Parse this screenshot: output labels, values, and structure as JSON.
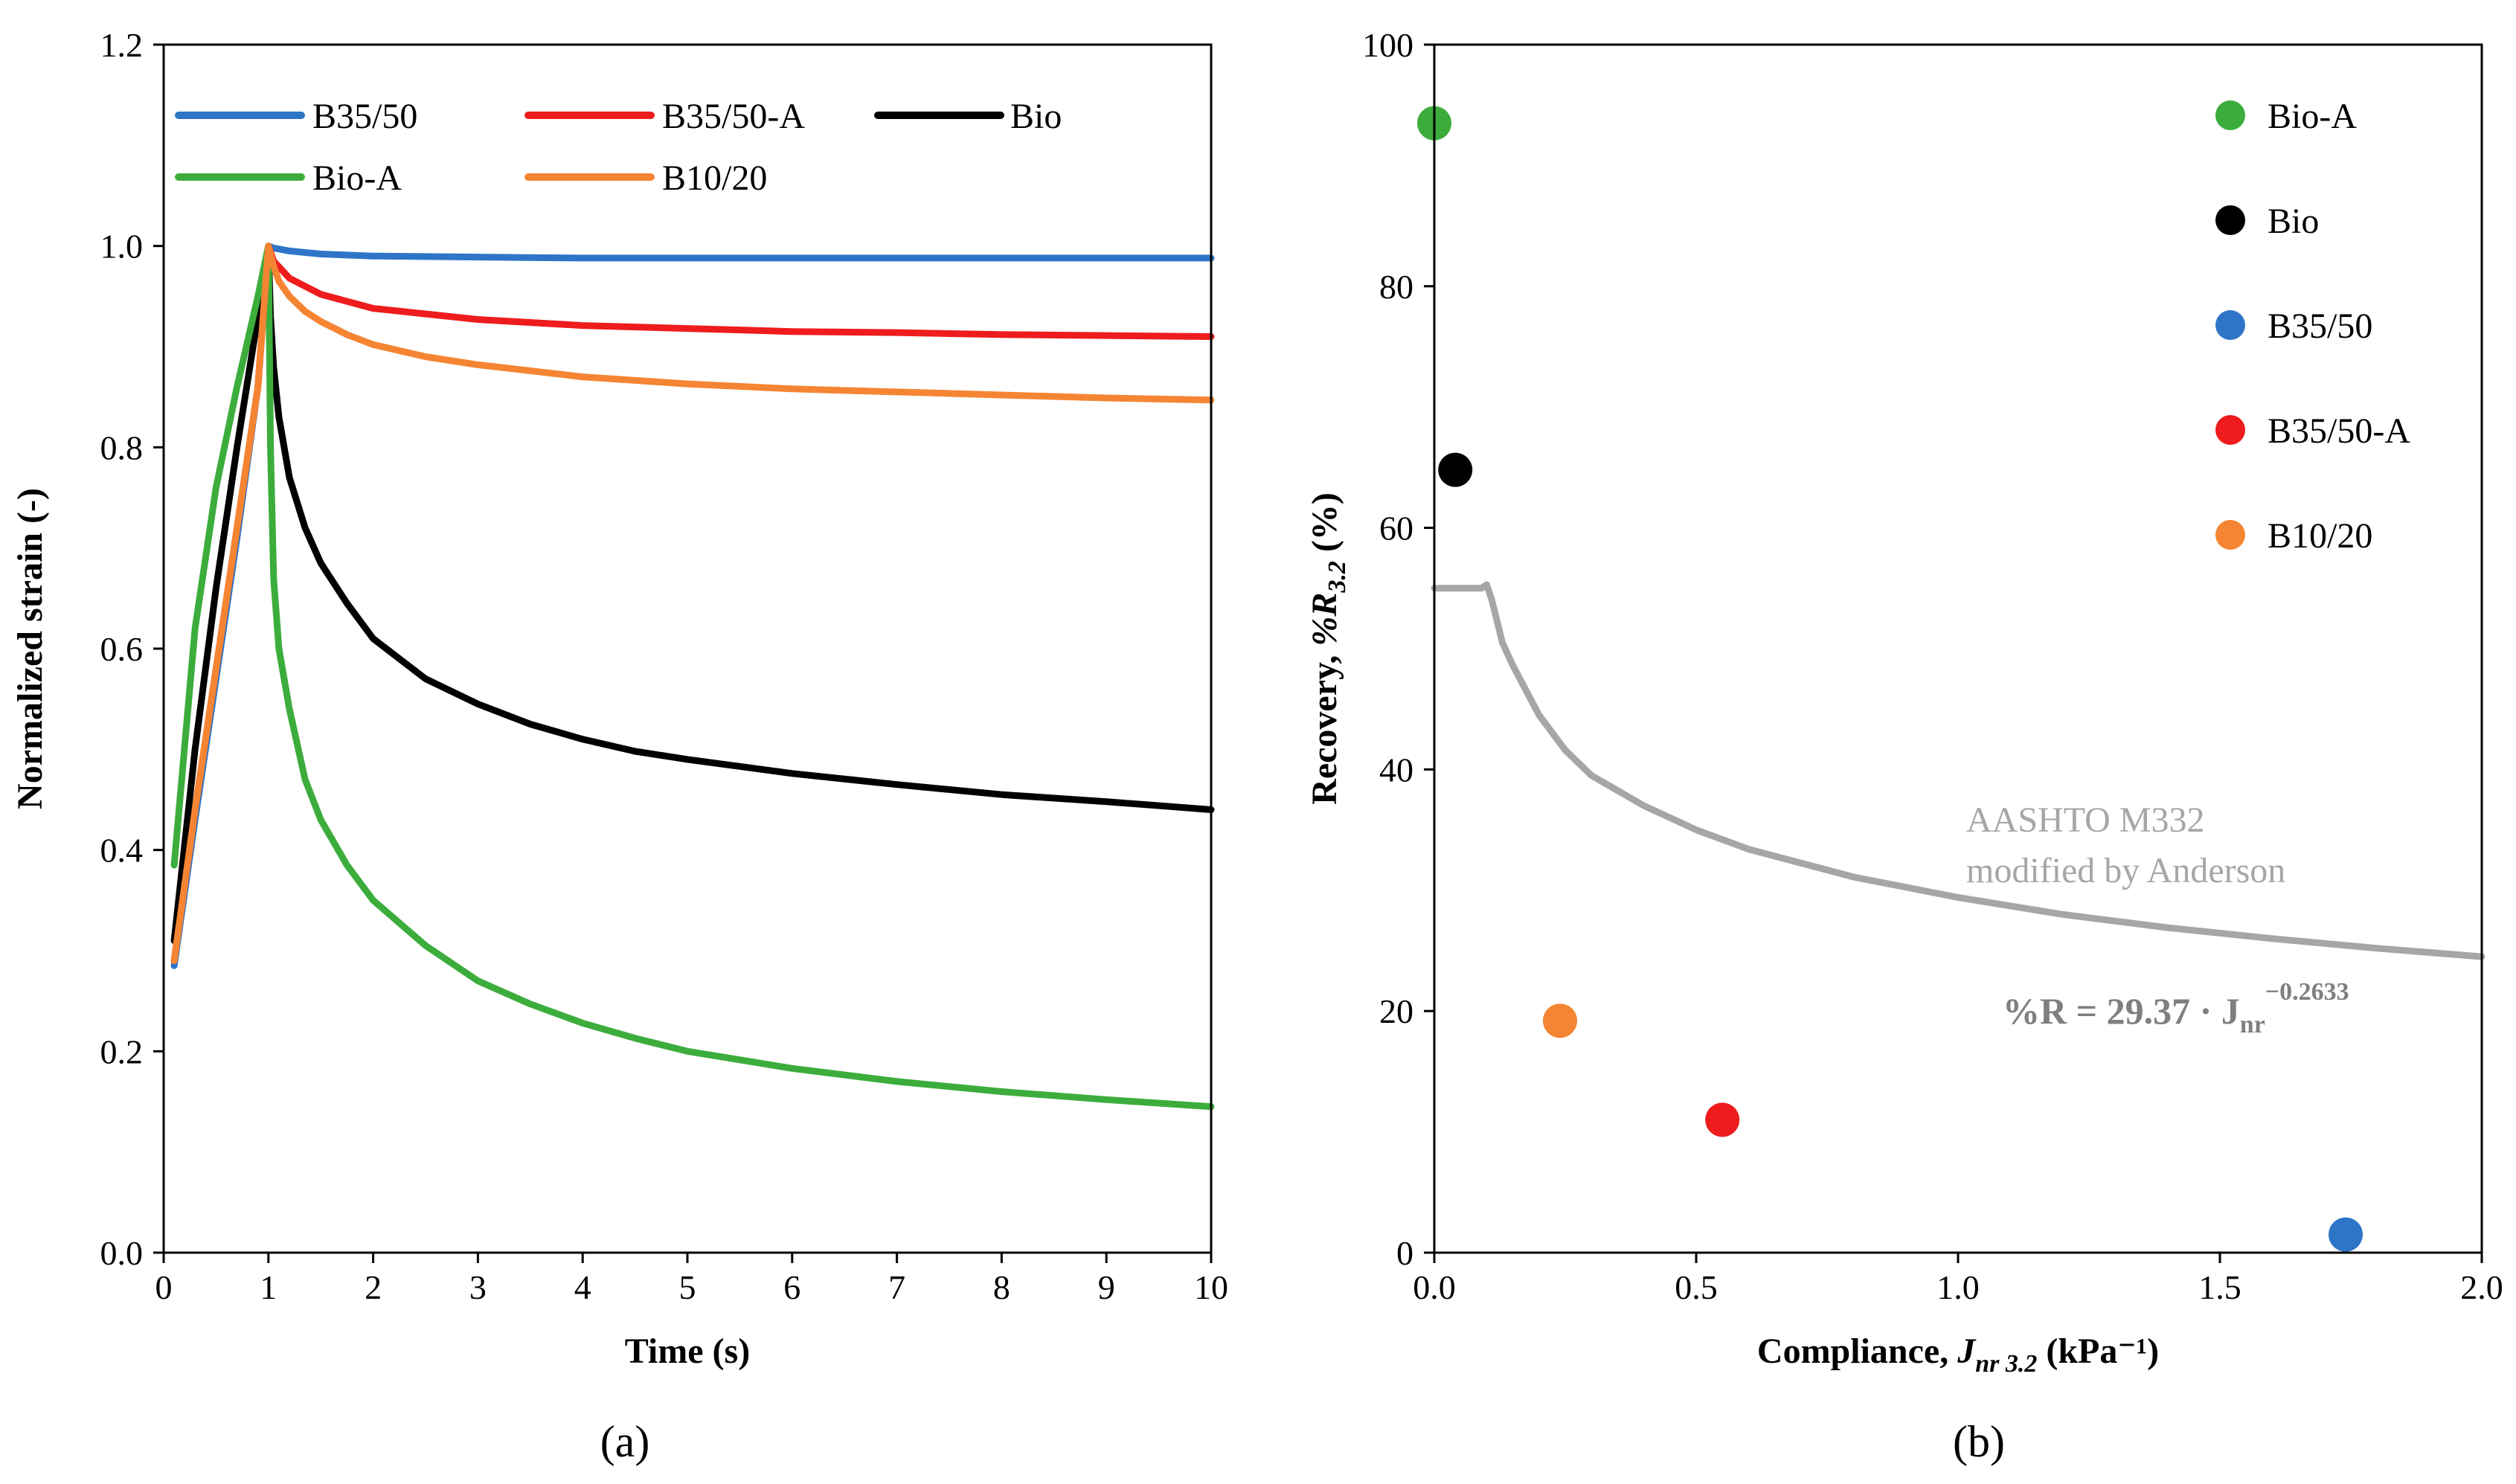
{
  "chart_data": [
    {
      "type": "line",
      "panel_label": "(a)",
      "xlabel": "Time (s)",
      "ylabel": "Normalized strain (-)",
      "xlim": [
        0,
        10
      ],
      "ylim": [
        0,
        1.2
      ],
      "xticks": [
        "0",
        "1",
        "2",
        "3",
        "4",
        "5",
        "6",
        "7",
        "8",
        "9",
        "10"
      ],
      "yticks": [
        "0.0",
        "0.2",
        "0.4",
        "0.6",
        "0.8",
        "1.0",
        "1.2"
      ],
      "legend": [
        "B35/50",
        "B35/50-A",
        "Bio",
        "Bio-A",
        "B10/20"
      ],
      "series": [
        {
          "name": "B35/50",
          "color": "#2e75c8",
          "x": [
            0.1,
            0.3,
            0.5,
            0.7,
            0.9,
            1.0,
            1.05,
            1.2,
            1.5,
            2,
            3,
            4,
            5,
            6,
            7,
            8,
            9,
            10
          ],
          "y": [
            0.285,
            0.43,
            0.57,
            0.71,
            0.86,
            1.0,
            0.998,
            0.995,
            0.992,
            0.99,
            0.989,
            0.988,
            0.988,
            0.988,
            0.988,
            0.988,
            0.988,
            0.988
          ]
        },
        {
          "name": "B35/50-A",
          "color": "#ee1c1c",
          "x": [
            0.1,
            0.3,
            0.5,
            0.7,
            0.9,
            1.0,
            1.05,
            1.2,
            1.5,
            2,
            3,
            4,
            5,
            6,
            7,
            8,
            9,
            10
          ],
          "y": [
            0.29,
            0.44,
            0.58,
            0.72,
            0.86,
            1.0,
            0.985,
            0.968,
            0.952,
            0.938,
            0.927,
            0.921,
            0.918,
            0.915,
            0.914,
            0.912,
            0.911,
            0.91
          ]
        },
        {
          "name": "Bio",
          "color": "#000000",
          "x": [
            0.1,
            0.3,
            0.5,
            0.7,
            0.9,
            1.0,
            1.02,
            1.05,
            1.1,
            1.2,
            1.35,
            1.5,
            1.75,
            2,
            2.5,
            3,
            3.5,
            4,
            4.5,
            5,
            6,
            7,
            8,
            9,
            10
          ],
          "y": [
            0.31,
            0.5,
            0.66,
            0.8,
            0.93,
            1.0,
            0.93,
            0.88,
            0.83,
            0.77,
            0.72,
            0.685,
            0.645,
            0.61,
            0.57,
            0.545,
            0.525,
            0.51,
            0.498,
            0.49,
            0.476,
            0.465,
            0.455,
            0.448,
            0.44
          ]
        },
        {
          "name": "Bio-A",
          "color": "#3cad3c",
          "x": [
            0.1,
            0.3,
            0.5,
            0.7,
            0.9,
            1.0,
            1.02,
            1.05,
            1.1,
            1.2,
            1.35,
            1.5,
            1.75,
            2,
            2.5,
            3,
            3.5,
            4,
            4.5,
            5,
            6,
            7,
            8,
            9,
            10
          ],
          "y": [
            0.385,
            0.62,
            0.76,
            0.86,
            0.95,
            1.0,
            0.8,
            0.67,
            0.6,
            0.54,
            0.47,
            0.43,
            0.385,
            0.35,
            0.305,
            0.27,
            0.247,
            0.228,
            0.213,
            0.2,
            0.183,
            0.17,
            0.16,
            0.152,
            0.145
          ]
        },
        {
          "name": "B10/20",
          "color": "#f58532",
          "x": [
            0.1,
            0.3,
            0.5,
            0.7,
            0.9,
            1.0,
            1.05,
            1.1,
            1.2,
            1.35,
            1.5,
            1.75,
            2,
            2.5,
            3,
            4,
            5,
            6,
            7,
            8,
            9,
            10
          ],
          "y": [
            0.29,
            0.44,
            0.58,
            0.72,
            0.86,
            1.0,
            0.98,
            0.965,
            0.95,
            0.935,
            0.925,
            0.912,
            0.902,
            0.89,
            0.882,
            0.87,
            0.863,
            0.858,
            0.855,
            0.852,
            0.849,
            0.847
          ]
        }
      ]
    },
    {
      "type": "scatter",
      "panel_label": "(b)",
      "xlabel_prefix": "Compliance, ",
      "xlabel_symbol": "J",
      "xlabel_subscript": "nr 3.2",
      "xlabel_suffix": " (kPa⁻¹)",
      "ylabel_prefix": "Recovery, ",
      "ylabel_symbol": "%R",
      "ylabel_subscript": "3.2",
      "ylabel_suffix": " (%)",
      "xlim": [
        0,
        2
      ],
      "ylim": [
        0,
        100
      ],
      "xticks": [
        "0.0",
        "0.5",
        "1.0",
        "1.5",
        "2.0"
      ],
      "yticks": [
        "0",
        "20",
        "40",
        "60",
        "80",
        "100"
      ],
      "points": [
        {
          "name": "Bio-A",
          "color": "#3cad3c",
          "x": 0.0,
          "y": 93.5
        },
        {
          "name": "Bio",
          "color": "#000000",
          "x": 0.04,
          "y": 64.8
        },
        {
          "name": "B35/50",
          "color": "#2e75c8",
          "x": 1.74,
          "y": 1.5
        },
        {
          "name": "B35/50-A",
          "color": "#ee1c1c",
          "x": 0.55,
          "y": 11
        },
        {
          "name": "B10/20",
          "color": "#f58532",
          "x": 0.24,
          "y": 19.2
        }
      ],
      "curve": {
        "name": "AASHTO M332 modified by Anderson",
        "color": "#a6a6a6",
        "x": [
          0,
          0.05,
          0.09,
          0.1,
          0.11,
          0.13,
          0.15,
          0.2,
          0.25,
          0.3,
          0.4,
          0.5,
          0.6,
          0.8,
          1.0,
          1.2,
          1.4,
          1.6,
          1.8,
          2.0
        ],
        "y": [
          55,
          55,
          55,
          55.3,
          54,
          50.5,
          48.6,
          44.5,
          41.6,
          39.5,
          37.0,
          35.0,
          33.4,
          31.1,
          29.4,
          28.0,
          26.9,
          26.0,
          25.2,
          24.5
        ]
      },
      "annotation_line1": "AASHTO M332",
      "annotation_line2": "modified by Anderson",
      "equation_lhs": "%R = 29.37 · J",
      "equation_sub": "nr",
      "equation_exp": "−0.2633"
    }
  ]
}
